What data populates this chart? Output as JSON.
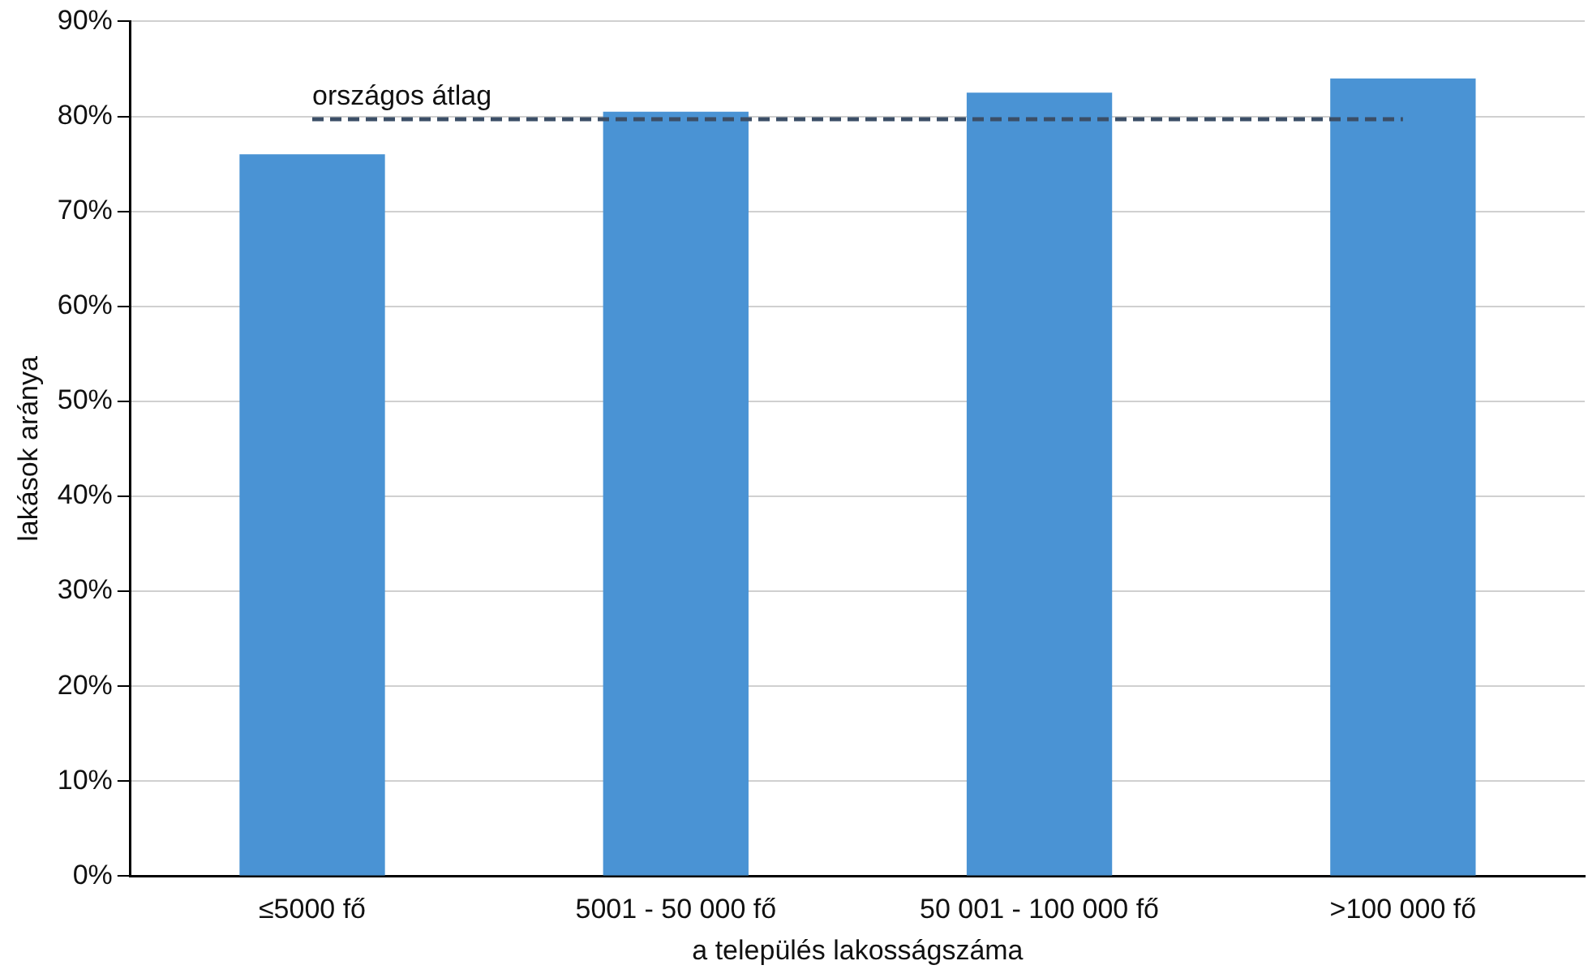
{
  "chart_data": {
    "type": "bar",
    "xlabel": "a település lakosságszáma",
    "ylabel": "lakások aránya",
    "categories": [
      "≤5000 fő",
      "5001 - 50 000 fő",
      "50 001 - 100 000 fő",
      ">100 000 fő"
    ],
    "values": [
      76,
      80.5,
      82.5,
      84
    ],
    "color": "#4a93d4",
    "ylim": [
      0,
      90
    ],
    "yticks": [
      {
        "value": 0,
        "label": "0%"
      },
      {
        "value": 10,
        "label": "10%"
      },
      {
        "value": 20,
        "label": "20%"
      },
      {
        "value": 30,
        "label": "30%"
      },
      {
        "value": 40,
        "label": "40%"
      },
      {
        "value": 50,
        "label": "50%"
      },
      {
        "value": 60,
        "label": "60%"
      },
      {
        "value": 70,
        "label": "70%"
      },
      {
        "value": 80,
        "label": "80%"
      },
      {
        "value": 90,
        "label": "90%"
      }
    ],
    "grid": "y",
    "legend": false,
    "ref_lines": [
      {
        "axis": "y",
        "value": 79.7,
        "label": "országos átlag",
        "color": "#3b4e66",
        "line_style": "dashed"
      }
    ]
  }
}
